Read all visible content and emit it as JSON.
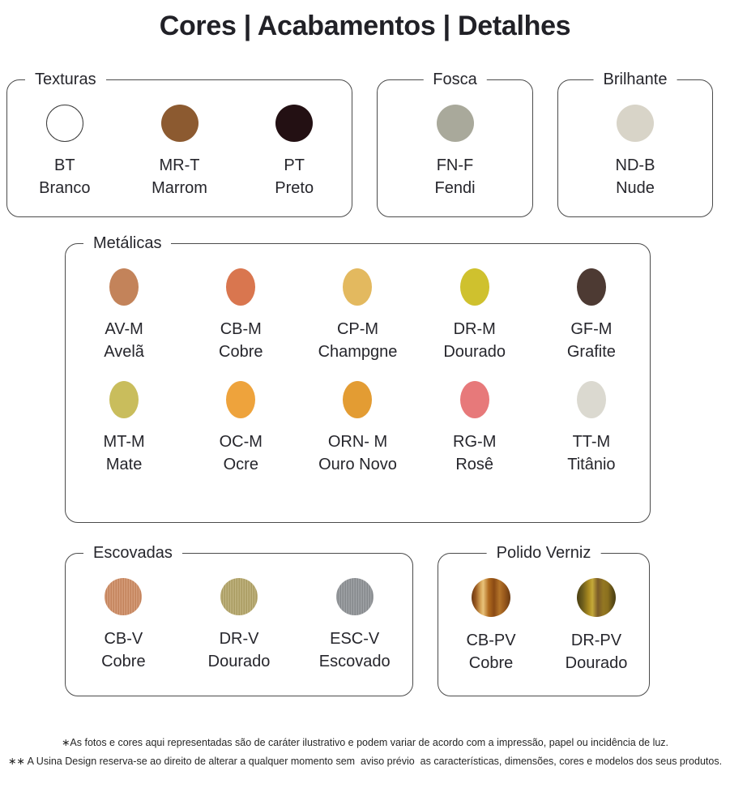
{
  "title": "Cores | Acabamentos | Detalhes",
  "sections": {
    "texturas": {
      "label": "Texturas",
      "items": [
        {
          "code": "BT",
          "name": "Branco",
          "color": "#ffffff"
        },
        {
          "code": "MR-T",
          "name": "Marrom",
          "color": "#8c5a30"
        },
        {
          "code": "PT",
          "name": "Preto",
          "color": "#231013"
        }
      ]
    },
    "fosca": {
      "label": "Fosca",
      "items": [
        {
          "code": "FN-F",
          "name": "Fendi",
          "color": "#a9a99b"
        }
      ]
    },
    "brilhante": {
      "label": "Brilhante",
      "items": [
        {
          "code": "ND-B",
          "name": "Nude",
          "color": "#d8d4c8"
        }
      ]
    },
    "metalicas": {
      "label": "Metálicas",
      "items": [
        {
          "code": "AV-M",
          "name": "Avelã",
          "color": "#c3835a"
        },
        {
          "code": "CB-M",
          "name": "Cobre",
          "color": "#d9764f"
        },
        {
          "code": "CP-M",
          "name": "Champgne",
          "color": "#e3b95f"
        },
        {
          "code": "DR-M",
          "name": "Dourado",
          "color": "#cfc12e"
        },
        {
          "code": "GF-M",
          "name": "Grafite",
          "color": "#4d3a33"
        },
        {
          "code": "MT-M",
          "name": "Mate",
          "color": "#c9bd5c"
        },
        {
          "code": "OC-M",
          "name": "Ocre",
          "color": "#eea33c"
        },
        {
          "code": "ORN- M",
          "name": "Ouro Novo",
          "color": "#e39c33"
        },
        {
          "code": "RG-M",
          "name": "Rosê",
          "color": "#e7797a"
        },
        {
          "code": "TT-M",
          "name": "Titânio",
          "color": "#dbd9d0"
        }
      ]
    },
    "escovadas": {
      "label": "Escovadas",
      "items": [
        {
          "code": "CB-V",
          "name": "Cobre",
          "color": "#cd8a61"
        },
        {
          "code": "DR-V",
          "name": "Dourado",
          "color": "#b3a467"
        },
        {
          "code": "ESC-V",
          "name": "Escovado",
          "color": "#8d9094"
        }
      ]
    },
    "polido_verniz": {
      "label": "Polido Verniz",
      "items": [
        {
          "code": "CB-PV",
          "name": "Cobre",
          "color": "linear-gradient(90deg,#6b3a16 0%,#94551e 10%,#d9a85a 24%,#e8c27a 30%,#b06a1e 44%,#8a4a14 58%,#b4742a 72%,#9a5a1c 84%,#6b3a12 100%)"
        },
        {
          "code": "DR-PV",
          "name": "Dourado",
          "color": "linear-gradient(90deg,#4a3f12 0%,#6b5c1c 14%,#a8891f 30%,#c4a93a 40%,#7a5a28 54%,#937722 68%,#8a6f1e 80%,#5c4c16 92%,#4a3f12 100%)"
        }
      ]
    }
  },
  "footer": {
    "line1": "∗As fotos e cores aqui representadas são de caráter ilustrativo e podem variar de acordo com a impressão, papel ou incidência de luz.",
    "line2": "∗∗ A Usina Design reserva-se ao direito de alterar a qualquer momento sem  aviso prévio  as características, dimensões, cores e modelos dos seus produtos."
  },
  "colors": {
    "box_border": "#4b4b4b",
    "text": "#26262c",
    "swatch_outline": "#3a3a3a"
  }
}
